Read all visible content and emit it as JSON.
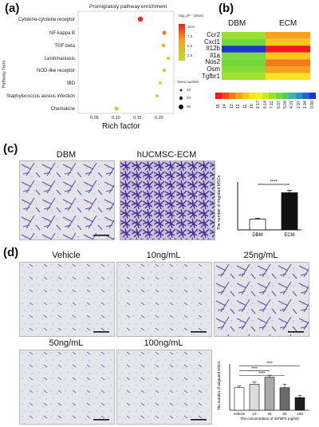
{
  "panel_labels": {
    "a": "(a)",
    "b": "(b)",
    "c": "(c)",
    "d": "(d)"
  },
  "panel_a": {
    "title": "Promigratory pathway enrichment",
    "xlabel": "Rich factor",
    "ylabel": "Pathway Term",
    "x_ticks": [
      "0.05",
      "0.10",
      "0.15",
      "0.20"
    ],
    "color_legend_title": "-log₁₀(P - Value)",
    "color_ticks": [
      "10.0",
      "7.5",
      "5.0",
      "2.5"
    ],
    "size_legend_title": "Gene number",
    "size_ticks": [
      "10",
      "20",
      "30"
    ]
  },
  "panel_b": {
    "columns": [
      "DBM",
      "ECM"
    ],
    "rows": [
      "Ccr2",
      "Cxcl1",
      "Il12b",
      "Il1a",
      "Nos2",
      "Osm",
      "Tgfbr1"
    ],
    "scale_labels": [
      "15",
      "14",
      "13",
      "12",
      "11",
      "10",
      "9.17",
      "8.14",
      "7.11",
      "6.07",
      "5.04",
      "4.01",
      "2.97",
      "1.94",
      "0.90"
    ],
    "scale_colors": [
      "#ee1c1c",
      "#f04a1a",
      "#f47a1c",
      "#f7a21e",
      "#f9c81e",
      "#fbe21f",
      "#f2ee1f",
      "#c8e828",
      "#9ee031",
      "#6fd83b",
      "#4dcc5c",
      "#3cb6a0",
      "#2e8fcf",
      "#2263d8",
      "#1a34d0"
    ]
  },
  "panel_c": {
    "label_dbm": "DBM",
    "label_ecm": "hUCMSC-ECM",
    "chart_data": {
      "type": "bar",
      "categories": [
        "DBM",
        "ECM"
      ],
      "values": [
        180,
        620
      ],
      "errors": [
        15,
        40
      ],
      "ylabel": "The number of migrated MSCs",
      "ylim": [
        0,
        800
      ],
      "significance": "****"
    }
  },
  "panel_d": {
    "labels": [
      "Vehicle",
      "10ng/mL",
      "25ng/mL",
      "50ng/mL",
      "100ng/mL"
    ],
    "chart_data": {
      "type": "bar",
      "categories": [
        "vehicle",
        "10",
        "25",
        "50",
        "100"
      ],
      "values": [
        195,
        225,
        285,
        195,
        110
      ],
      "errors": [
        15,
        20,
        18,
        30,
        18
      ],
      "bar_colors": [
        "#ffffff",
        "#dcdcdc",
        "#a9a9a9",
        "#6b6b6b",
        "#1e1e1e"
      ],
      "ylabel": "The number of migrated MSCs",
      "xlabel": "The concentration of IGFBP3 (ng/ml)",
      "ylim": [
        0,
        400
      ],
      "significance": [
        "****",
        "****",
        "****"
      ]
    }
  }
}
